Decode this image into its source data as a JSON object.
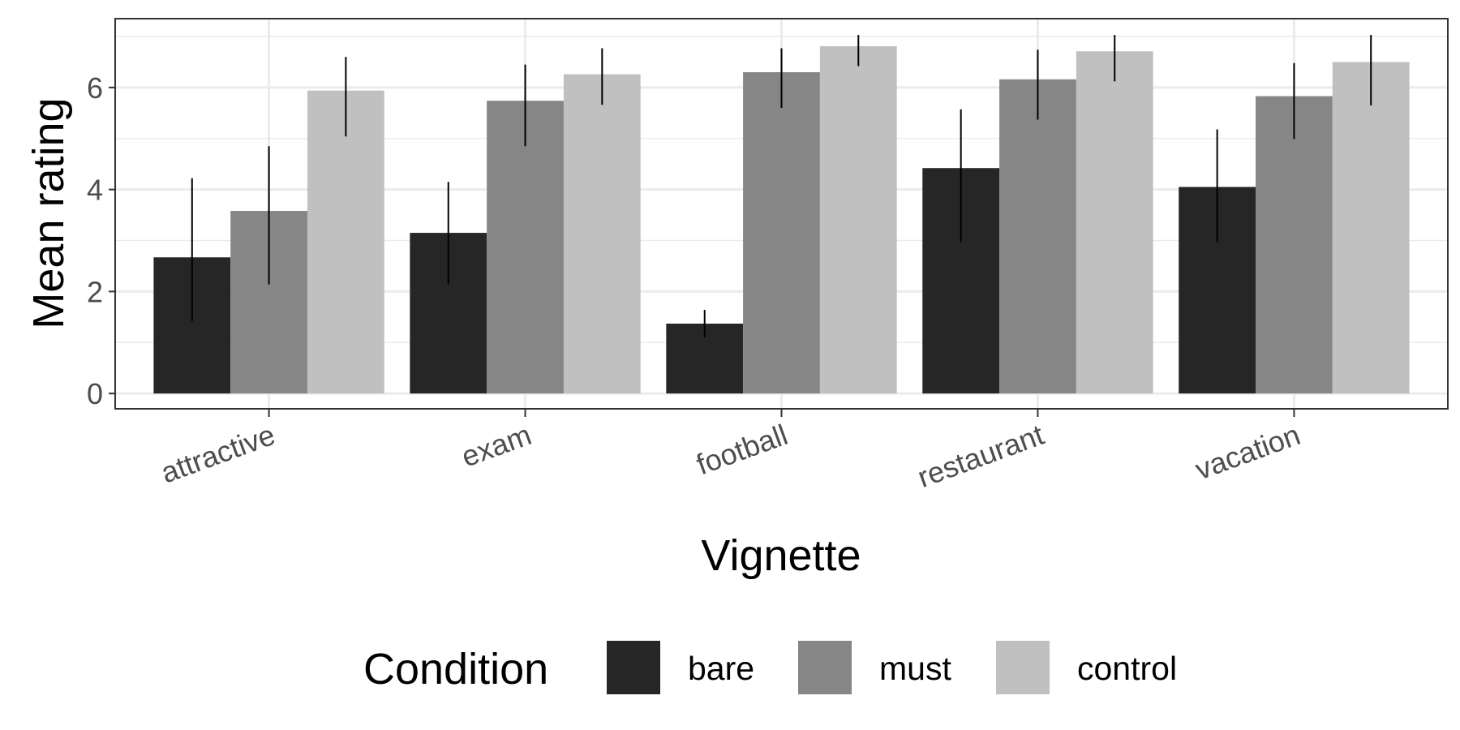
{
  "chart_data": {
    "type": "bar",
    "title": "",
    "xlabel": "Vignette",
    "ylabel": "Mean rating",
    "categories": [
      "attractive",
      "exam",
      "football",
      "restaurant",
      "vacation"
    ],
    "ylim": [
      -0.3,
      7.35
    ],
    "yticks": [
      0,
      2,
      4,
      6
    ],
    "grid": true,
    "legend": {
      "title": "Condition",
      "position": "bottom"
    },
    "series": [
      {
        "name": "bare",
        "color": "#262626",
        "values": [
          2.67,
          3.15,
          1.37,
          4.42,
          4.05
        ],
        "error_low": [
          1.42,
          2.14,
          1.1,
          2.97,
          2.97
        ],
        "error_high": [
          4.22,
          4.15,
          1.64,
          5.57,
          5.18
        ]
      },
      {
        "name": "must",
        "color": "#868686",
        "values": [
          3.58,
          5.74,
          6.3,
          6.16,
          5.83
        ],
        "error_low": [
          2.14,
          4.85,
          5.6,
          5.37,
          4.99
        ],
        "error_high": [
          4.85,
          6.45,
          6.77,
          6.74,
          6.48
        ]
      },
      {
        "name": "control",
        "color": "#c0c0c0",
        "values": [
          5.94,
          6.26,
          6.81,
          6.71,
          6.5
        ],
        "error_low": [
          5.04,
          5.66,
          6.42,
          6.12,
          5.65
        ],
        "error_high": [
          6.6,
          6.77,
          7.03,
          7.03,
          7.03
        ]
      }
    ]
  }
}
